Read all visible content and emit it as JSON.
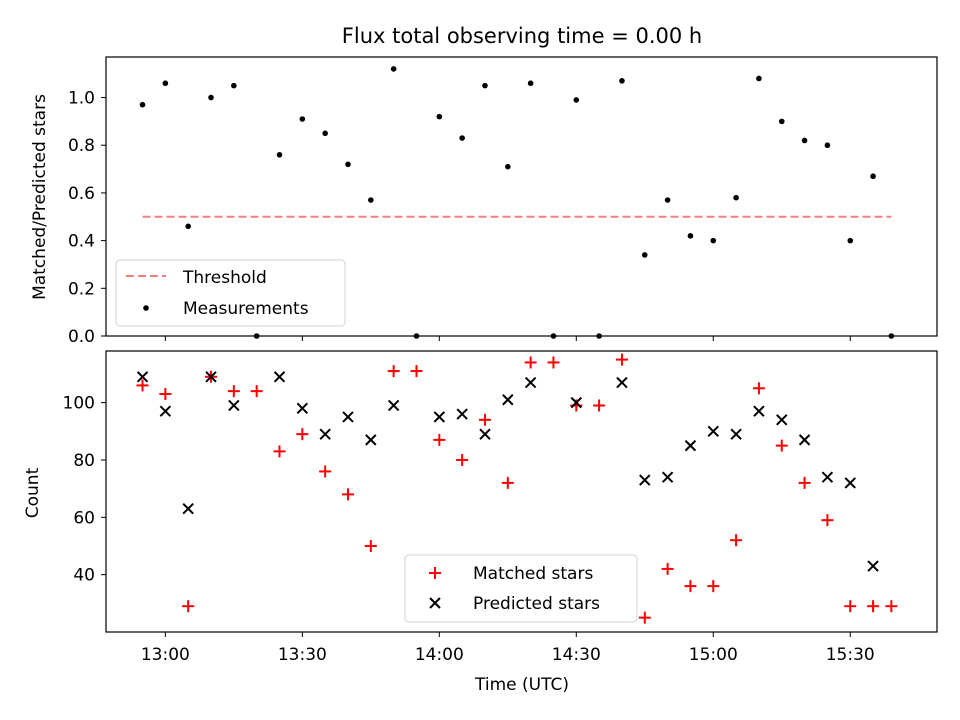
{
  "chart_data": [
    {
      "type": "scatter",
      "title": "Flux total observing time = 0.00 h",
      "ylabel": "Matched/Predicted stars",
      "xlabel": "",
      "ylim": [
        0,
        1.17
      ],
      "xlim": [
        "12:47",
        "15:49"
      ],
      "yticks": [
        0.0,
        0.2,
        0.4,
        0.6,
        0.8,
        1.0
      ],
      "ytick_labels": [
        "0.0",
        "0.2",
        "0.4",
        "0.6",
        "0.8",
        "1.0"
      ],
      "legend": "lower-left",
      "threshold": {
        "name": "Threshold",
        "value": 0.5,
        "x_start": "12:55",
        "x_end": "15:39",
        "color": "#f08080"
      },
      "series": [
        {
          "name": "Measurements",
          "color": "#000000",
          "x": [
            "12:55",
            "13:00",
            "13:05",
            "13:10",
            "13:15",
            "13:20",
            "13:25",
            "13:30",
            "13:35",
            "13:40",
            "13:45",
            "13:50",
            "13:55",
            "14:00",
            "14:05",
            "14:10",
            "14:15",
            "14:20",
            "14:25",
            "14:30",
            "14:35",
            "14:40",
            "14:45",
            "14:50",
            "14:55",
            "15:00",
            "15:05",
            "15:10",
            "15:15",
            "15:20",
            "15:25",
            "15:30",
            "15:35",
            "15:39"
          ],
          "values": [
            0.97,
            1.06,
            0.46,
            1.0,
            1.05,
            0.0,
            0.76,
            0.91,
            0.85,
            0.72,
            0.57,
            1.12,
            0.0,
            0.92,
            0.83,
            1.05,
            0.71,
            1.06,
            0.0,
            0.99,
            0.0,
            1.07,
            0.34,
            0.57,
            0.42,
            0.4,
            0.58,
            1.08,
            0.9,
            0.82,
            0.8,
            0.4,
            0.67,
            0.0
          ]
        }
      ]
    },
    {
      "type": "scatter",
      "title": "",
      "ylabel": "Count",
      "xlabel": "Time (UTC)",
      "ylim": [
        20,
        118
      ],
      "xlim": [
        "12:47",
        "15:49"
      ],
      "yticks": [
        40,
        60,
        80,
        100
      ],
      "ytick_labels": [
        "40",
        "60",
        "80",
        "100"
      ],
      "xticks": [
        "13:00",
        "13:30",
        "14:00",
        "14:30",
        "15:00",
        "15:30"
      ],
      "legend": "lower-center",
      "series": [
        {
          "name": "Matched stars",
          "marker": "+",
          "color": "#ff0000",
          "x": [
            "12:55",
            "13:00",
            "13:05",
            "13:10",
            "13:15",
            "13:20",
            "13:25",
            "13:30",
            "13:35",
            "13:40",
            "13:45",
            "13:50",
            "13:55",
            "14:00",
            "14:05",
            "14:10",
            "14:15",
            "14:20",
            "14:25",
            "14:30",
            "14:35",
            "14:40",
            "14:45",
            "14:50",
            "14:55",
            "15:00",
            "15:05",
            "15:10",
            "15:15",
            "15:20",
            "15:25",
            "15:30",
            "15:35",
            "15:39"
          ],
          "values": [
            106,
            103,
            29,
            109,
            104,
            104,
            83,
            89,
            76,
            68,
            50,
            111,
            111,
            87,
            80,
            94,
            72,
            114,
            114,
            99,
            99,
            115,
            25,
            42,
            36,
            36,
            52,
            105,
            85,
            72,
            59,
            29,
            29,
            29
          ]
        },
        {
          "name": "Predicted stars",
          "marker": "x",
          "color": "#000000",
          "x": [
            "12:55",
            "13:00",
            "13:05",
            "13:10",
            "13:15",
            "13:25",
            "13:30",
            "13:35",
            "13:40",
            "13:45",
            "13:50",
            "14:00",
            "14:05",
            "14:10",
            "14:15",
            "14:20",
            "14:30",
            "14:40",
            "14:45",
            "14:50",
            "14:55",
            "15:00",
            "15:05",
            "15:10",
            "15:15",
            "15:20",
            "15:25",
            "15:30",
            "15:35"
          ],
          "values": [
            109,
            97,
            63,
            109,
            99,
            109,
            98,
            89,
            95,
            87,
            99,
            95,
            96,
            89,
            101,
            107,
            100,
            107,
            73,
            74,
            85,
            90,
            89,
            97,
            94,
            87,
            74,
            72,
            43
          ]
        }
      ]
    }
  ]
}
